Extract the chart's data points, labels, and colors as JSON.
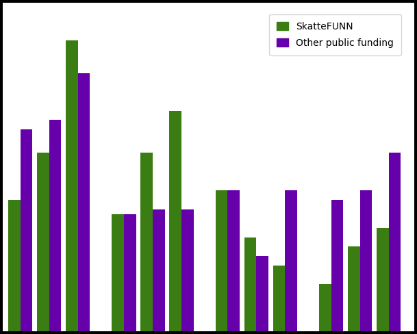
{
  "groups": [
    {
      "skattefunn": [
        28,
        38,
        62
      ],
      "other": [
        43,
        45,
        55
      ]
    },
    {
      "skattefunn": [
        25,
        38,
        47
      ],
      "other": [
        25,
        26,
        26
      ]
    },
    {
      "skattefunn": [
        30,
        20,
        14
      ],
      "other": [
        30,
        16,
        30
      ]
    },
    {
      "skattefunn": [
        10,
        18,
        22
      ],
      "other": [
        28,
        30,
        38
      ]
    }
  ],
  "skattefunn_color": "#3a7d12",
  "other_color": "#6600aa",
  "background_color": "#ffffff",
  "grid_color": "#cccccc",
  "bar_width": 0.38,
  "ylim": [
    0,
    70
  ],
  "legend_skattefunn": "SkatteFUNN",
  "legend_other": "Other public funding",
  "figure_width": 6.09,
  "figure_height": 4.88,
  "dpi": 100
}
